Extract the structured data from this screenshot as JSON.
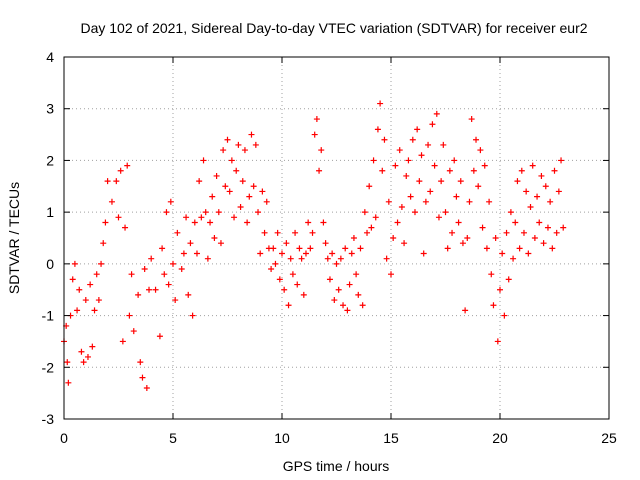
{
  "chart_data": {
    "type": "scatter",
    "title": "Day 102 of 2021, Sidereal Day-to-day VTEC variation (SDTVAR) for receiver eur2",
    "xlabel": "GPS time / hours",
    "ylabel": "SDTVAR / TECUs",
    "xlim": [
      0,
      25
    ],
    "ylim": [
      -3,
      4
    ],
    "xticks": [
      0,
      5,
      10,
      15,
      20,
      25
    ],
    "yticks": [
      -3,
      -2,
      -1,
      0,
      1,
      2,
      3,
      4
    ],
    "grid": true,
    "marker": "+",
    "color": "#ff0000",
    "series": [
      {
        "name": "SDTVAR",
        "values": [
          [
            0.0,
            -1.5
          ],
          [
            0.1,
            -1.2
          ],
          [
            0.15,
            -1.9
          ],
          [
            0.2,
            -2.3
          ],
          [
            0.3,
            -1.0
          ],
          [
            0.4,
            -0.3
          ],
          [
            0.5,
            0.0
          ],
          [
            0.6,
            -0.9
          ],
          [
            0.7,
            -0.5
          ],
          [
            0.8,
            -1.7
          ],
          [
            0.9,
            -1.9
          ],
          [
            1.0,
            -0.7
          ],
          [
            1.1,
            -1.8
          ],
          [
            1.2,
            -0.4
          ],
          [
            1.3,
            -1.6
          ],
          [
            1.4,
            -0.9
          ],
          [
            1.5,
            -0.2
          ],
          [
            1.6,
            -0.7
          ],
          [
            1.7,
            0.0
          ],
          [
            1.8,
            0.4
          ],
          [
            1.9,
            0.8
          ],
          [
            2.0,
            1.6
          ],
          [
            2.2,
            1.2
          ],
          [
            2.4,
            1.6
          ],
          [
            2.5,
            0.9
          ],
          [
            2.6,
            1.8
          ],
          [
            2.7,
            -1.5
          ],
          [
            2.8,
            0.7
          ],
          [
            2.9,
            1.9
          ],
          [
            3.0,
            -1.0
          ],
          [
            3.1,
            -0.2
          ],
          [
            3.2,
            -1.3
          ],
          [
            3.4,
            -0.6
          ],
          [
            3.5,
            -1.9
          ],
          [
            3.6,
            -2.2
          ],
          [
            3.7,
            -0.1
          ],
          [
            3.8,
            -2.4
          ],
          [
            3.9,
            -0.5
          ],
          [
            4.0,
            0.1
          ],
          [
            4.2,
            -0.5
          ],
          [
            4.4,
            -1.4
          ],
          [
            4.5,
            0.3
          ],
          [
            4.6,
            -0.2
          ],
          [
            4.7,
            1.0
          ],
          [
            4.8,
            -0.4
          ],
          [
            4.9,
            1.2
          ],
          [
            5.0,
            0.0
          ],
          [
            5.1,
            -0.7
          ],
          [
            5.2,
            0.6
          ],
          [
            5.4,
            -0.1
          ],
          [
            5.5,
            0.2
          ],
          [
            5.6,
            0.9
          ],
          [
            5.7,
            -0.6
          ],
          [
            5.8,
            0.4
          ],
          [
            5.9,
            -1.0
          ],
          [
            6.0,
            0.8
          ],
          [
            6.1,
            0.2
          ],
          [
            6.2,
            1.6
          ],
          [
            6.3,
            0.9
          ],
          [
            6.4,
            2.0
          ],
          [
            6.5,
            1.0
          ],
          [
            6.6,
            0.1
          ],
          [
            6.7,
            0.8
          ],
          [
            6.8,
            1.3
          ],
          [
            6.9,
            0.5
          ],
          [
            7.0,
            1.7
          ],
          [
            7.1,
            1.0
          ],
          [
            7.2,
            0.4
          ],
          [
            7.3,
            2.2
          ],
          [
            7.4,
            1.5
          ],
          [
            7.5,
            2.4
          ],
          [
            7.6,
            1.4
          ],
          [
            7.7,
            2.0
          ],
          [
            7.8,
            0.9
          ],
          [
            7.9,
            1.8
          ],
          [
            8.0,
            2.3
          ],
          [
            8.1,
            1.1
          ],
          [
            8.2,
            1.6
          ],
          [
            8.3,
            2.2
          ],
          [
            8.4,
            0.8
          ],
          [
            8.5,
            1.3
          ],
          [
            8.6,
            2.5
          ],
          [
            8.7,
            1.5
          ],
          [
            8.8,
            2.3
          ],
          [
            8.9,
            1.0
          ],
          [
            9.0,
            0.2
          ],
          [
            9.1,
            1.4
          ],
          [
            9.2,
            0.6
          ],
          [
            9.3,
            1.2
          ],
          [
            9.4,
            0.3
          ],
          [
            9.5,
            -0.1
          ],
          [
            9.6,
            0.3
          ],
          [
            9.7,
            0.0
          ],
          [
            9.8,
            0.6
          ],
          [
            9.9,
            -0.3
          ],
          [
            10.0,
            0.2
          ],
          [
            10.1,
            -0.5
          ],
          [
            10.2,
            0.4
          ],
          [
            10.3,
            -0.8
          ],
          [
            10.4,
            0.1
          ],
          [
            10.5,
            -0.2
          ],
          [
            10.6,
            0.6
          ],
          [
            10.7,
            -0.4
          ],
          [
            10.8,
            0.3
          ],
          [
            10.9,
            0.1
          ],
          [
            11.0,
            -0.6
          ],
          [
            11.1,
            0.2
          ],
          [
            11.2,
            0.8
          ],
          [
            11.3,
            0.3
          ],
          [
            11.4,
            0.6
          ],
          [
            11.5,
            2.5
          ],
          [
            11.6,
            2.8
          ],
          [
            11.7,
            1.8
          ],
          [
            11.8,
            2.2
          ],
          [
            11.9,
            0.8
          ],
          [
            12.0,
            0.4
          ],
          [
            12.1,
            0.1
          ],
          [
            12.2,
            -0.3
          ],
          [
            12.3,
            0.2
          ],
          [
            12.4,
            -0.7
          ],
          [
            12.5,
            0.0
          ],
          [
            12.6,
            -0.5
          ],
          [
            12.7,
            0.1
          ],
          [
            12.8,
            -0.8
          ],
          [
            12.9,
            0.3
          ],
          [
            13.0,
            -0.9
          ],
          [
            13.1,
            -0.4
          ],
          [
            13.2,
            0.2
          ],
          [
            13.3,
            0.5
          ],
          [
            13.4,
            -0.2
          ],
          [
            13.5,
            -0.6
          ],
          [
            13.6,
            0.3
          ],
          [
            13.7,
            -0.8
          ],
          [
            13.8,
            1.0
          ],
          [
            13.9,
            0.6
          ],
          [
            14.0,
            1.5
          ],
          [
            14.1,
            0.7
          ],
          [
            14.2,
            2.0
          ],
          [
            14.3,
            0.9
          ],
          [
            14.4,
            2.6
          ],
          [
            14.5,
            3.1
          ],
          [
            14.6,
            1.8
          ],
          [
            14.7,
            2.4
          ],
          [
            14.8,
            0.1
          ],
          [
            14.9,
            1.2
          ],
          [
            15.0,
            -0.2
          ],
          [
            15.1,
            0.5
          ],
          [
            15.2,
            1.9
          ],
          [
            15.3,
            0.8
          ],
          [
            15.4,
            2.2
          ],
          [
            15.5,
            1.1
          ],
          [
            15.6,
            0.4
          ],
          [
            15.7,
            1.7
          ],
          [
            15.8,
            2.0
          ],
          [
            15.9,
            1.3
          ],
          [
            16.0,
            2.4
          ],
          [
            16.1,
            1.0
          ],
          [
            16.2,
            2.6
          ],
          [
            16.3,
            1.6
          ],
          [
            16.4,
            2.1
          ],
          [
            16.5,
            0.2
          ],
          [
            16.6,
            1.2
          ],
          [
            16.7,
            2.3
          ],
          [
            16.8,
            1.4
          ],
          [
            16.9,
            2.7
          ],
          [
            17.0,
            1.9
          ],
          [
            17.1,
            2.9
          ],
          [
            17.2,
            0.9
          ],
          [
            17.3,
            1.6
          ],
          [
            17.4,
            2.3
          ],
          [
            17.5,
            1.0
          ],
          [
            17.6,
            0.3
          ],
          [
            17.7,
            1.8
          ],
          [
            17.8,
            0.6
          ],
          [
            17.9,
            2.0
          ],
          [
            18.0,
            1.3
          ],
          [
            18.1,
            0.8
          ],
          [
            18.2,
            1.6
          ],
          [
            18.3,
            0.4
          ],
          [
            18.4,
            -0.9
          ],
          [
            18.5,
            0.5
          ],
          [
            18.6,
            1.2
          ],
          [
            18.7,
            2.8
          ],
          [
            18.8,
            1.8
          ],
          [
            18.9,
            2.4
          ],
          [
            19.0,
            1.5
          ],
          [
            19.1,
            2.2
          ],
          [
            19.2,
            0.7
          ],
          [
            19.3,
            1.9
          ],
          [
            19.4,
            0.3
          ],
          [
            19.5,
            1.2
          ],
          [
            19.6,
            -0.2
          ],
          [
            19.7,
            -0.8
          ],
          [
            19.8,
            0.5
          ],
          [
            19.9,
            -1.5
          ],
          [
            20.0,
            -0.5
          ],
          [
            20.1,
            0.2
          ],
          [
            20.2,
            -1.0
          ],
          [
            20.3,
            0.6
          ],
          [
            20.4,
            -0.3
          ],
          [
            20.5,
            1.0
          ],
          [
            20.6,
            0.1
          ],
          [
            20.7,
            0.8
          ],
          [
            20.8,
            1.6
          ],
          [
            20.9,
            0.3
          ],
          [
            21.0,
            1.8
          ],
          [
            21.1,
            0.6
          ],
          [
            21.2,
            1.4
          ],
          [
            21.3,
            0.2
          ],
          [
            21.4,
            1.1
          ],
          [
            21.5,
            1.9
          ],
          [
            21.6,
            0.5
          ],
          [
            21.7,
            1.3
          ],
          [
            21.8,
            0.8
          ],
          [
            21.9,
            1.7
          ],
          [
            22.0,
            0.4
          ],
          [
            22.1,
            1.5
          ],
          [
            22.2,
            0.7
          ],
          [
            22.3,
            1.2
          ],
          [
            22.4,
            0.3
          ],
          [
            22.5,
            1.8
          ],
          [
            22.6,
            0.6
          ],
          [
            22.7,
            1.4
          ],
          [
            22.8,
            2.0
          ],
          [
            22.9,
            0.7
          ]
        ]
      }
    ]
  }
}
